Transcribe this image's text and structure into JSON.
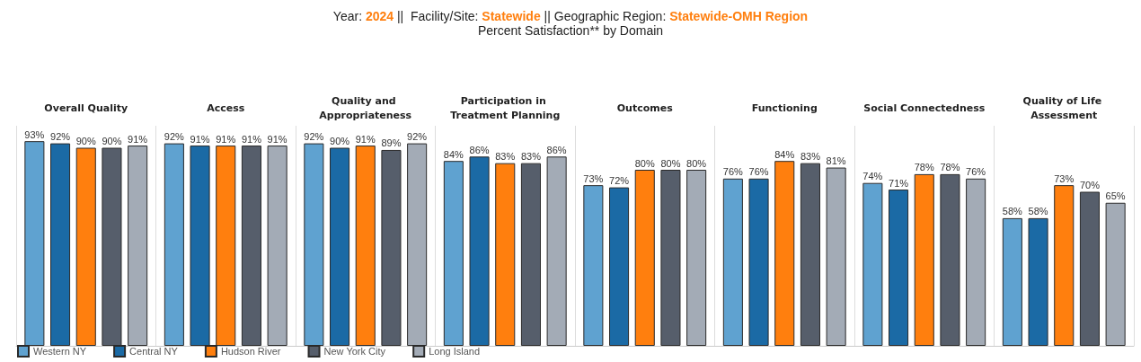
{
  "chart_data": {
    "type": "bar",
    "title": "Year: 2024 ||  Facility/Site: Statewide || Geographic Region: Statewide-OMH Region",
    "subtitle": "Percent Satisfaction** by Domain",
    "categories": [
      "Overall Quality",
      "Access",
      "Quality and Appropriateness",
      "Participation in Treatment Planning",
      "Outcomes",
      "Functioning",
      "Social Connectedness",
      "Quality of Life Assessment"
    ],
    "series": [
      {
        "name": "Western NY",
        "color": "#5fa2d0",
        "values": [
          93,
          92,
          92,
          84,
          73,
          76,
          74,
          58
        ],
        "value_labels": [
          "93%",
          "92%",
          "92%",
          "84%",
          "73%",
          "76%",
          "74%",
          "58%"
        ]
      },
      {
        "name": "Central NY",
        "color": "#1b6aa5",
        "values": [
          92,
          91,
          90,
          86,
          72,
          76,
          71,
          58
        ],
        "value_labels": [
          "92%",
          "91%",
          "90%",
          "86%",
          "72%",
          "76%",
          "71%",
          "58%"
        ]
      },
      {
        "name": "Hudson River",
        "color": "#ff7f0e",
        "values": [
          90,
          91,
          91,
          83,
          80,
          84,
          78,
          73
        ],
        "value_labels": [
          "90%",
          "91%",
          "91%",
          "83%",
          "80%",
          "84%",
          "78%",
          "73%"
        ]
      },
      {
        "name": "New York City",
        "color": "#565e6b",
        "values": [
          90,
          91,
          89,
          83,
          80,
          83,
          78,
          70
        ],
        "value_labels": [
          "90%",
          "91%",
          "89%",
          "83%",
          "80%",
          "83%",
          "78%",
          "70%"
        ]
      },
      {
        "name": "Long Island",
        "color": "#a3abb6",
        "values": [
          91,
          91,
          92,
          86,
          80,
          81,
          76,
          65
        ],
        "value_labels": [
          "91%",
          "91%",
          "92%",
          "86%",
          "80%",
          "81%",
          "76%",
          "65%"
        ]
      }
    ],
    "legend": "bottom left"
  }
}
